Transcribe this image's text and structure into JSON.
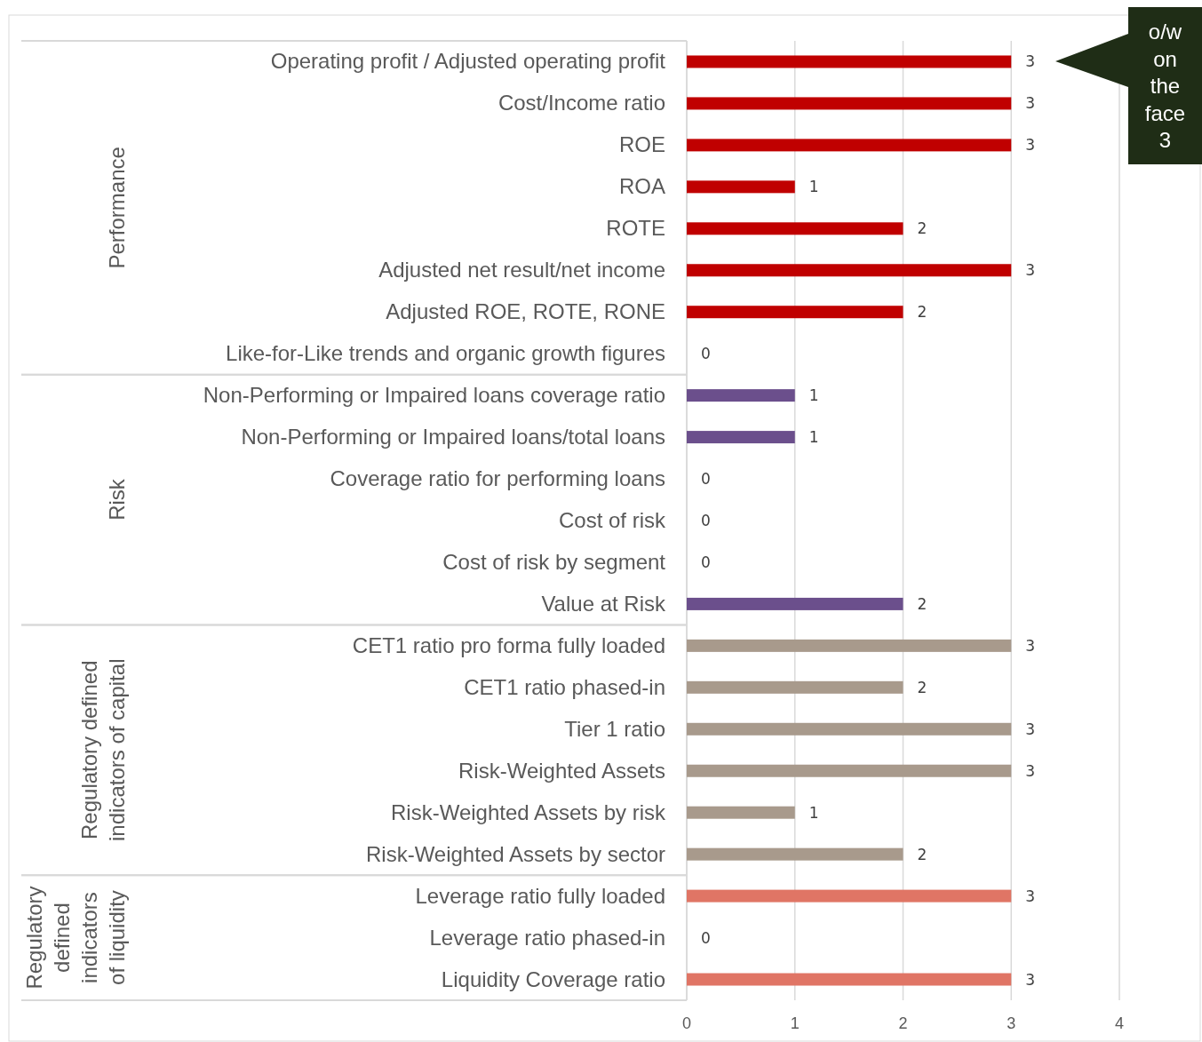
{
  "chart_data": {
    "type": "bar",
    "orientation": "horizontal",
    "categories": [
      "Operating profit / Adjusted operating profit",
      "Cost/Income ratio",
      "ROE",
      "ROA",
      "ROTE",
      "Adjusted net result/net income",
      "Adjusted ROE, ROTE, RONE",
      "Like-for-Like trends and organic growth figures",
      "Non-Performing or Impaired loans coverage ratio",
      "Non-Performing or Impaired loans/total loans",
      "Coverage ratio for performing loans",
      "Cost of risk",
      "Cost of risk by segment",
      "Value at Risk",
      "CET1 ratio pro forma fully loaded",
      "CET1 ratio phased-in",
      "Tier 1 ratio",
      "Risk-Weighted Assets",
      "Risk-Weighted Assets by risk",
      "Risk-Weighted Assets by sector",
      "Leverage ratio fully loaded",
      "Leverage ratio phased-in",
      "Liquidity Coverage ratio"
    ],
    "values": [
      3,
      3,
      3,
      1,
      2,
      3,
      2,
      0,
      1,
      1,
      0,
      0,
      0,
      2,
      3,
      2,
      3,
      3,
      1,
      2,
      3,
      0,
      3
    ],
    "colors": [
      "#c00000",
      "#c00000",
      "#c00000",
      "#c00000",
      "#c00000",
      "#c00000",
      "#c00000",
      "#c00000",
      "#6b4f8c",
      "#6b4f8c",
      "#6b4f8c",
      "#6b4f8c",
      "#6b4f8c",
      "#6b4f8c",
      "#a89a8c",
      "#a89a8c",
      "#a89a8c",
      "#a89a8c",
      "#a89a8c",
      "#a89a8c",
      "#e07565",
      "#e07565",
      "#e07565"
    ],
    "xlim": [
      0,
      4
    ],
    "xticks": [
      0,
      1,
      2,
      3,
      4
    ],
    "grid": "x",
    "data_labels": true,
    "annotations": [
      "Performance",
      "Risk",
      "Regulatory defined indicators of capital",
      "Regulatory defined indicators of liquidity",
      "o/w on the face 3"
    ]
  }
}
